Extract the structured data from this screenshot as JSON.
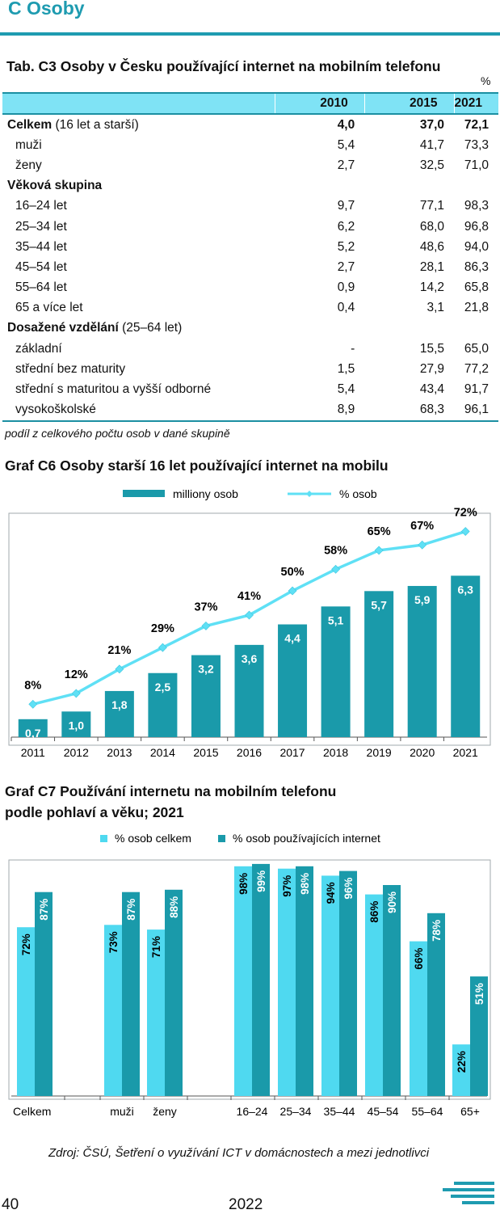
{
  "section": {
    "title": "C  Osoby"
  },
  "table": {
    "title": "Tab. C3 Osoby v Česku používající internet na mobilním telefonu",
    "unit": "%",
    "headers": [
      "",
      "2010",
      "2015",
      "2021"
    ],
    "rows": [
      {
        "label": "Celkem",
        "suffix": " (16 let a starší)",
        "bold": true,
        "cells": [
          "4,0",
          "37,0",
          "72,1"
        ]
      },
      {
        "label": "muži",
        "cells": [
          "5,4",
          "41,7",
          "73,3"
        ]
      },
      {
        "label": "ženy",
        "cells": [
          "2,7",
          "32,5",
          "71,0"
        ]
      },
      {
        "label": "Věková skupina",
        "bold": true,
        "section": true,
        "cells": [
          "",
          "",
          ""
        ]
      },
      {
        "label": "16–24 let",
        "cells": [
          "9,7",
          "77,1",
          "98,3"
        ]
      },
      {
        "label": "25–34 let",
        "cells": [
          "6,2",
          "68,0",
          "96,8"
        ]
      },
      {
        "label": "35–44 let",
        "cells": [
          "5,2",
          "48,6",
          "94,0"
        ]
      },
      {
        "label": "45–54 let",
        "cells": [
          "2,7",
          "28,1",
          "86,3"
        ]
      },
      {
        "label": "55–64 let",
        "cells": [
          "0,9",
          "14,2",
          "65,8"
        ]
      },
      {
        "label": "65 a více let",
        "cells": [
          "0,4",
          "3,1",
          "21,8"
        ]
      },
      {
        "label": "Dosažené vzdělání",
        "suffix": " (25–64 let)",
        "bold": true,
        "section": true,
        "cells": [
          "",
          "",
          ""
        ]
      },
      {
        "label": "základní",
        "cells": [
          "-",
          "15,5",
          "65,0"
        ]
      },
      {
        "label": "střední bez maturity",
        "cells": [
          "1,5",
          "27,9",
          "77,2"
        ]
      },
      {
        "label": "střední s maturitou a vyšší odborné",
        "cells": [
          "5,4",
          "43,4",
          "91,7"
        ]
      },
      {
        "label": "vysokoškolské",
        "cells": [
          "8,9",
          "68,3",
          "96,1"
        ]
      }
    ],
    "note": "podíl z celkového počtu osob v dané skupině"
  },
  "chart_c6_title": "Graf C6 Osoby starší 16 let používající internet na mobilu",
  "chart_c7_title_line1": "Graf C7 Používání internetu na mobilním telefonu",
  "chart_c7_title_line2": "podle pohlaví a věku; 2021",
  "source": "Zdroj: ČSÚ, Šetření o využívání ICT v domácnostech a mezi jednotlivci",
  "footer": {
    "page": "40",
    "year": "2022"
  },
  "colors": {
    "accent": "#1e9bb0",
    "bar_dark": "#1a9aaa",
    "bar_light": "#4fd9f0",
    "line": "#5fe0f5",
    "header_bg": "#7fe3f5"
  },
  "chart_data": [
    {
      "type": "bar",
      "categories": [
        "2011",
        "2012",
        "2013",
        "2014",
        "2015",
        "2016",
        "2017",
        "2018",
        "2019",
        "2020",
        "2021"
      ],
      "series": [
        {
          "name": "milliony osob",
          "values": [
            0.7,
            1.0,
            1.8,
            2.5,
            3.2,
            3.6,
            4.4,
            5.1,
            5.7,
            5.9,
            6.3
          ],
          "labels": [
            "0,7",
            "1,0",
            "1,8",
            "2,5",
            "3,2",
            "3,6",
            "4,4",
            "5,1",
            "5,7",
            "5,9",
            "6,3"
          ]
        },
        {
          "name": "% osob",
          "type": "line",
          "values": [
            8,
            12,
            21,
            29,
            37,
            41,
            50,
            58,
            65,
            67,
            72
          ],
          "labels": [
            "8%",
            "12%",
            "21%",
            "29%",
            "37%",
            "41%",
            "50%",
            "58%",
            "65%",
            "67%",
            "72%"
          ]
        }
      ],
      "legend_labels": [
        "milliony osob",
        "% osob"
      ],
      "legend": "top",
      "grid": false
    },
    {
      "type": "bar",
      "categories": [
        "Celkem",
        "muži",
        "ženy",
        "16–24",
        "25–34",
        "35–44",
        "45–54",
        "55–64",
        "65+"
      ],
      "series": [
        {
          "name": "% osob celkem",
          "values": [
            72,
            73,
            71,
            98,
            97,
            94,
            86,
            66,
            22
          ]
        },
        {
          "name": "% osob používajících internet",
          "values": [
            87,
            87,
            88,
            99,
            98,
            96,
            90,
            78,
            51
          ]
        }
      ],
      "legend": "top",
      "grid": false
    }
  ]
}
